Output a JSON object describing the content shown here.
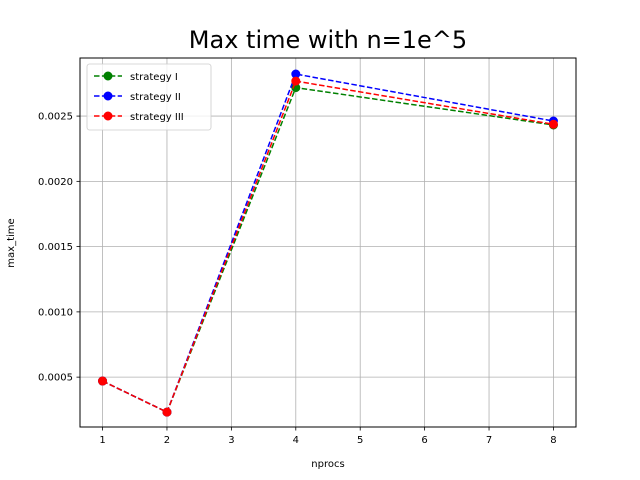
{
  "chart_data": {
    "type": "line",
    "title": "Max time with n=1e^5",
    "xlabel": "nprocs",
    "ylabel": "max_time",
    "xlim": [
      0.65,
      8.35
    ],
    "ylim": [
      0.000118,
      0.002945
    ],
    "xticks": [
      1,
      2,
      3,
      4,
      5,
      6,
      7,
      8
    ],
    "xtick_labels": [
      "1",
      "2",
      "3",
      "4",
      "5",
      "6",
      "7",
      "8"
    ],
    "yticks": [
      0.0005,
      0.001,
      0.0015,
      0.002,
      0.0025
    ],
    "ytick_labels": [
      "0.0005",
      "0.0010",
      "0.0015",
      "0.0020",
      "0.0025"
    ],
    "grid": true,
    "legend_position": "top-left",
    "x": [
      1,
      2,
      4,
      8
    ],
    "series": [
      {
        "name": "strategy I",
        "color": "#008000",
        "values": [
          0.00047,
          0.000232,
          0.002718,
          0.002432
        ]
      },
      {
        "name": "strategy II",
        "color": "#0000ff",
        "values": [
          0.00047,
          0.000232,
          0.002822,
          0.002462
        ]
      },
      {
        "name": "strategy III",
        "color": "#ff0000",
        "values": [
          0.00047,
          0.000232,
          0.002768,
          0.002437
        ]
      }
    ]
  }
}
